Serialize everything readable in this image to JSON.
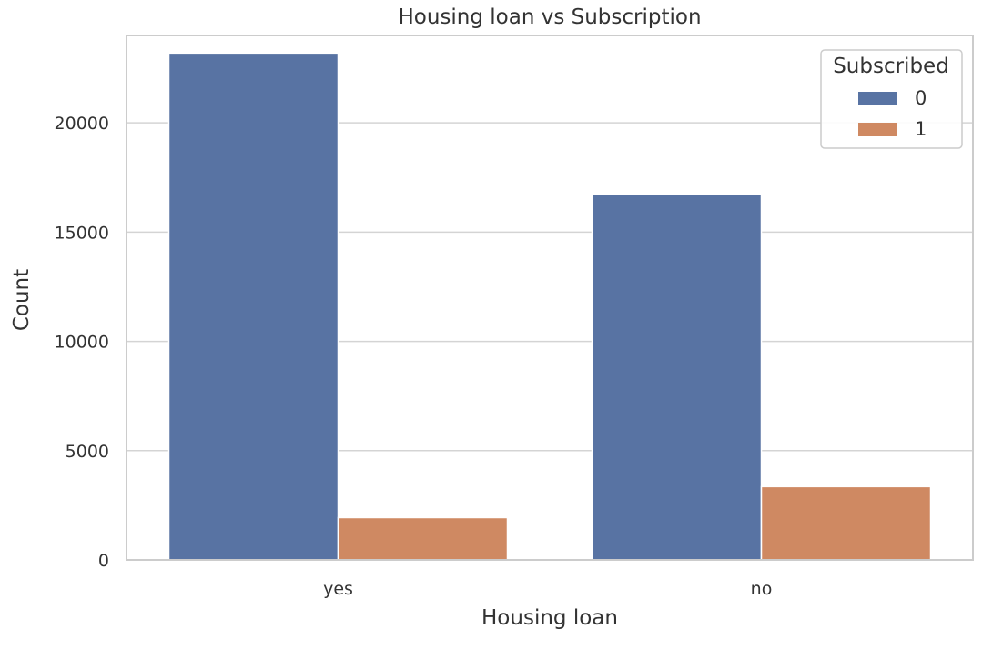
{
  "chart_data": {
    "type": "bar",
    "title": "Housing loan vs Subscription",
    "xlabel": "Housing loan",
    "ylabel": "Count",
    "categories": [
      "yes",
      "no"
    ],
    "series": [
      {
        "name": "0",
        "values": [
          23195,
          16727
        ],
        "color": "#5873a3"
      },
      {
        "name": "1",
        "values": [
          1935,
          3354
        ],
        "color": "#cf8962"
      }
    ],
    "ylim": [
      0,
      24000
    ],
    "yticks": [
      0,
      5000,
      10000,
      15000,
      20000
    ],
    "grid": true,
    "legend": {
      "title": "Subscribed",
      "placement": "top-right"
    }
  }
}
